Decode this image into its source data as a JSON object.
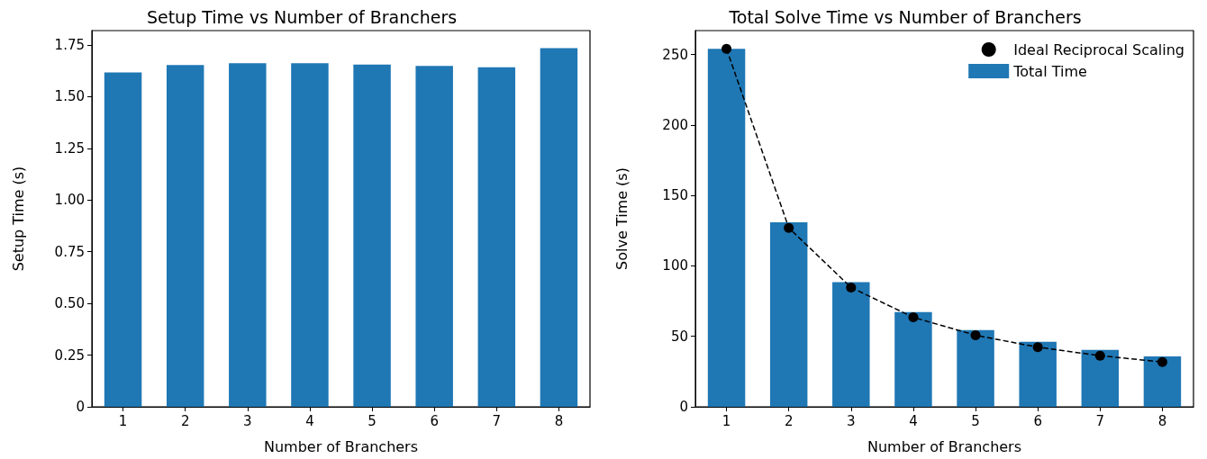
{
  "chart_data": [
    {
      "type": "bar",
      "title": "Setup Time vs Number of Branchers",
      "xlabel": "Number of Branchers",
      "ylabel": "Setup Time (s)",
      "categories": [
        "1",
        "2",
        "3",
        "4",
        "5",
        "6",
        "7",
        "8"
      ],
      "series": [
        {
          "color": "#1f77b4",
          "values": [
            1.618,
            1.653,
            1.662,
            1.662,
            1.656,
            1.649,
            1.643,
            1.735
          ]
        }
      ],
      "ylim": [
        0,
        1.82
      ],
      "yticks": [
        0,
        {
          "value": 0.25,
          "label": "0.25"
        },
        {
          "value": 0.5,
          "label": "0.50"
        },
        {
          "value": 0.75,
          "label": "0.75"
        },
        {
          "value": 1,
          "label": "1.00"
        },
        {
          "value": 1.25,
          "label": "1.25"
        },
        {
          "value": 1.5,
          "label": "1.50"
        },
        {
          "value": 1.75,
          "label": "1.75"
        }
      ],
      "grid": false,
      "legend": false
    },
    {
      "type": "bar",
      "title": "Total Solve Time vs Number of Branchers",
      "xlabel": "Number of Branchers",
      "ylabel": "Solve Time (s)",
      "categories": [
        "1",
        "2",
        "3",
        "4",
        "5",
        "6",
        "7",
        "8"
      ],
      "series": [
        {
          "name": "Total Time",
          "color": "#1f77b4",
          "values": [
            254,
            131,
            88.4,
            67.3,
            54.4,
            46.1,
            40.4,
            35.8
          ]
        },
        {
          "name": "Ideal Reciprocal Scaling",
          "type": "line",
          "color": "#000000",
          "marker": "circle",
          "line_style": "dashed",
          "values": [
            254,
            127,
            84.7,
            63.5,
            50.8,
            42.3,
            36.3,
            31.8
          ]
        }
      ],
      "ylim": [
        0,
        267
      ],
      "yticks": [
        0,
        50,
        100,
        150,
        200,
        250
      ],
      "grid": false,
      "legend": "top right"
    }
  ]
}
